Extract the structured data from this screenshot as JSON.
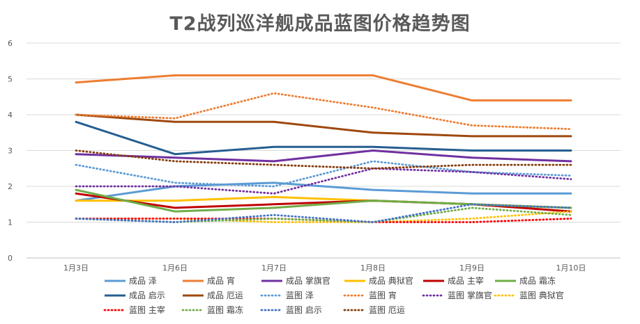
{
  "chart_data": {
    "type": "line",
    "title": "T2战列巡洋舰成品蓝图价格趋势图",
    "xlabel": "",
    "ylabel": "",
    "categories": [
      "1月3日",
      "1月6日",
      "1月7日",
      "1月8日",
      "1月9日",
      "1月10日"
    ],
    "ylim": [
      0,
      6
    ],
    "yticks": [
      0,
      1,
      2,
      3,
      4,
      5,
      6
    ],
    "grid": true,
    "legend": "bottom",
    "series": [
      {
        "name": "成品 泽",
        "color": "#5B9BD5",
        "style": "solid",
        "values": [
          1.6,
          2.0,
          2.1,
          1.9,
          1.8,
          1.8
        ]
      },
      {
        "name": "成品 宵",
        "color": "#ED7D31",
        "style": "solid",
        "values": [
          4.9,
          5.1,
          5.1,
          5.1,
          4.4,
          4.4
        ]
      },
      {
        "name": "成品 掌旗官",
        "color": "#7030A0",
        "style": "solid",
        "values": [
          2.9,
          2.8,
          2.7,
          3.0,
          2.8,
          2.7
        ]
      },
      {
        "name": "成品 典狱官",
        "color": "#FFC000",
        "style": "solid",
        "values": [
          1.6,
          1.6,
          1.7,
          1.6,
          1.5,
          1.4
        ]
      },
      {
        "name": "成品 主宰",
        "color": "#C00000",
        "style": "solid",
        "values": [
          1.8,
          1.4,
          1.5,
          1.6,
          1.5,
          1.3
        ]
      },
      {
        "name": "成品 霜冻",
        "color": "#70AD47",
        "style": "solid",
        "values": [
          1.9,
          1.3,
          1.4,
          1.6,
          1.5,
          1.4
        ]
      },
      {
        "name": "成品 启示",
        "color": "#255E91",
        "style": "solid",
        "values": [
          3.8,
          2.9,
          3.1,
          3.1,
          3.0,
          3.0
        ]
      },
      {
        "name": "成品 厄运",
        "color": "#9E480E",
        "style": "solid",
        "values": [
          4.0,
          3.8,
          3.8,
          3.5,
          3.4,
          3.4
        ]
      },
      {
        "name": "蓝图 泽",
        "color": "#5B9BD5",
        "style": "dotted",
        "values": [
          2.6,
          2.1,
          2.0,
          2.7,
          2.4,
          2.3
        ]
      },
      {
        "name": "蓝图 宵",
        "color": "#ED7D31",
        "style": "dotted",
        "values": [
          4.0,
          3.9,
          4.6,
          4.2,
          3.7,
          3.6
        ]
      },
      {
        "name": "蓝图 掌旗官",
        "color": "#7030A0",
        "style": "dotted",
        "values": [
          2.0,
          2.0,
          1.8,
          2.5,
          2.4,
          2.2
        ]
      },
      {
        "name": "蓝图 典狱官",
        "color": "#FFC000",
        "style": "dotted",
        "values": [
          1.1,
          1.1,
          1.0,
          1.0,
          1.1,
          1.3
        ]
      },
      {
        "name": "蓝图 主宰",
        "color": "#FF0000",
        "style": "dotted",
        "values": [
          1.1,
          1.1,
          1.1,
          1.0,
          1.0,
          1.1
        ]
      },
      {
        "name": "蓝图 霜冻",
        "color": "#70AD47",
        "style": "dotted",
        "values": [
          1.1,
          1.0,
          1.1,
          1.0,
          1.4,
          1.2
        ]
      },
      {
        "name": "蓝图 启示",
        "color": "#4472C4",
        "style": "dotted",
        "values": [
          1.1,
          1.0,
          1.2,
          1.0,
          1.5,
          1.4
        ]
      },
      {
        "name": "蓝图 厄运",
        "color": "#843C0C",
        "style": "dotted",
        "values": [
          3.0,
          2.7,
          2.6,
          2.5,
          2.6,
          2.6
        ]
      }
    ]
  }
}
